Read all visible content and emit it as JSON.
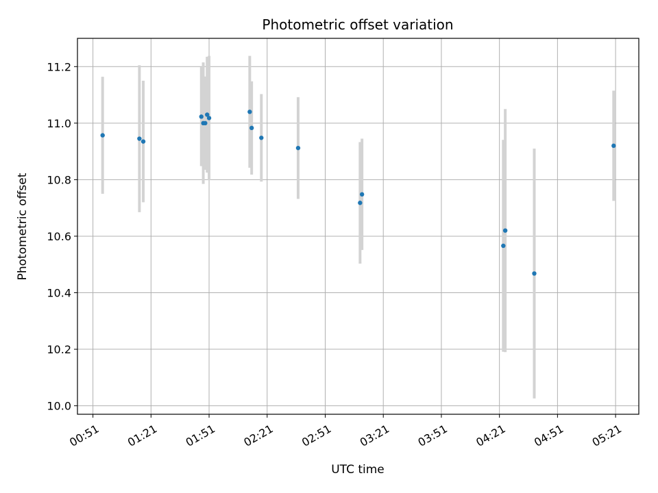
{
  "chart_data": {
    "type": "scatter",
    "title": "Photometric offset variation",
    "xlabel": "UTC time",
    "ylabel": "Photometric offset",
    "x_tick_labels": [
      "00:51",
      "01:21",
      "01:51",
      "02:21",
      "02:51",
      "03:21",
      "03:51",
      "04:21",
      "04:51",
      "05:21"
    ],
    "y_ticks": [
      10.0,
      10.2,
      10.4,
      10.6,
      10.8,
      11.0,
      11.2
    ],
    "y_tick_labels": [
      "10.0",
      "10.2",
      "10.4",
      "10.6",
      "10.8",
      "11.0",
      "11.2"
    ],
    "xlim": [
      "00:43",
      "05:33"
    ],
    "ylim": [
      9.97,
      11.3
    ],
    "grid": true,
    "colors": {
      "points": "#1f77b4",
      "errorbars": "#d3d3d3",
      "grid": "#b0b0b0"
    },
    "points": [
      {
        "x": "00:56",
        "y": 10.957,
        "yerr": 0.207
      },
      {
        "x": "01:15",
        "y": 10.945,
        "yerr": 0.26
      },
      {
        "x": "01:17",
        "y": 10.935,
        "yerr": 0.215
      },
      {
        "x": "01:47",
        "y": 11.023,
        "yerr": 0.175
      },
      {
        "x": "01:48",
        "y": 11.0,
        "yerr": 0.215
      },
      {
        "x": "01:49",
        "y": 11.0,
        "yerr": 0.165
      },
      {
        "x": "01:50",
        "y": 11.03,
        "yerr": 0.205
      },
      {
        "x": "01:51",
        "y": 11.018,
        "yerr": 0.22
      },
      {
        "x": "02:12",
        "y": 11.04,
        "yerr": 0.198
      },
      {
        "x": "02:13",
        "y": 10.983,
        "yerr": 0.165
      },
      {
        "x": "02:18",
        "y": 10.948,
        "yerr": 0.155
      },
      {
        "x": "02:37",
        "y": 10.912,
        "yerr": 0.18
      },
      {
        "x": "03:09",
        "y": 10.718,
        "yerr": 0.215
      },
      {
        "x": "03:10",
        "y": 10.748,
        "yerr": 0.197
      },
      {
        "x": "04:23",
        "y": 10.566,
        "yerr": 0.375
      },
      {
        "x": "04:24",
        "y": 10.62,
        "yerr": 0.43
      },
      {
        "x": "04:39",
        "y": 10.468,
        "yerr": 0.442
      },
      {
        "x": "05:20",
        "y": 10.92,
        "yerr": 0.195
      }
    ]
  }
}
